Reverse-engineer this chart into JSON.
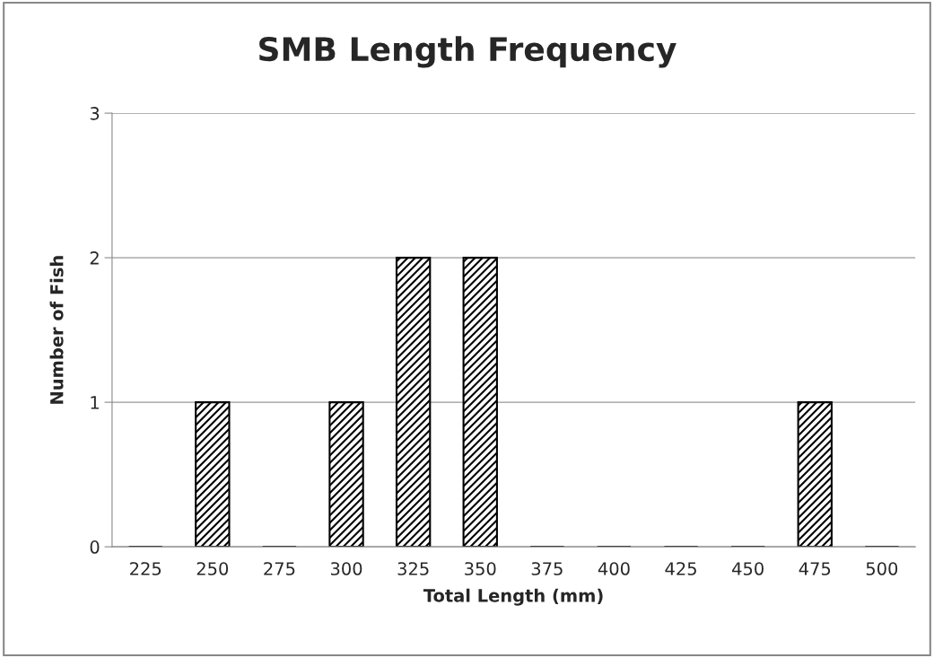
{
  "chart_data": {
    "type": "bar",
    "title": "SMB Length Frequency",
    "xlabel": "Total Length (mm)",
    "ylabel": "Number of Fish",
    "categories": [
      "225",
      "250",
      "275",
      "300",
      "325",
      "350",
      "375",
      "400",
      "425",
      "450",
      "475",
      "500"
    ],
    "values": [
      0,
      1,
      0,
      1,
      2,
      2,
      0,
      0,
      0,
      0,
      1,
      0
    ],
    "color": "#000000",
    "ylim": [
      0,
      3
    ],
    "yticks": [
      0,
      1,
      2,
      3
    ],
    "grid": "y",
    "legend": false
  }
}
